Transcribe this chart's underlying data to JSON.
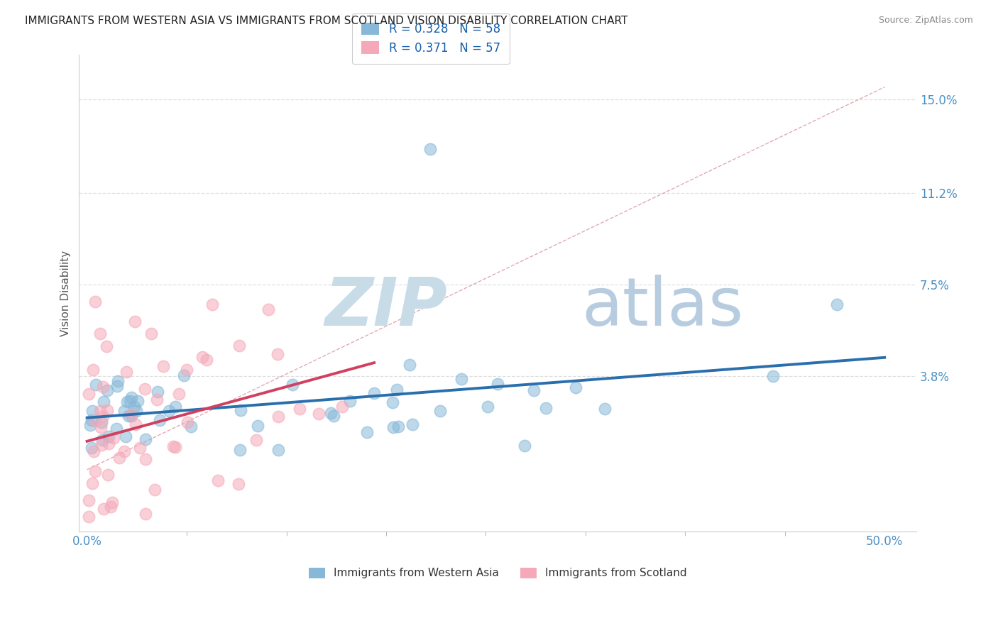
{
  "title": "IMMIGRANTS FROM WESTERN ASIA VS IMMIGRANTS FROM SCOTLAND VISION DISABILITY CORRELATION CHART",
  "source": "Source: ZipAtlas.com",
  "ylabel": "Vision Disability",
  "ytick_vals": [
    0.038,
    0.075,
    0.112,
    0.15
  ],
  "ytick_labels": [
    "3.8%",
    "7.5%",
    "11.2%",
    "15.0%"
  ],
  "xlim": [
    -0.005,
    0.52
  ],
  "ylim": [
    -0.025,
    0.168
  ],
  "legend1_r": "0.328",
  "legend1_n": "58",
  "legend2_r": "0.371",
  "legend2_n": "57",
  "color_blue": "#87b8d8",
  "color_pink": "#f5a8b8",
  "reg_blue": "#2a6fad",
  "reg_pink": "#d04060",
  "diag_color": "#e0a0a8",
  "grid_color": "#d8d8d8",
  "title_color": "#222222",
  "source_color": "#888888",
  "axis_color": "#4a90c4",
  "legend_text_color": "#1a5fa8",
  "watermark_zip_color": "#c8dce8",
  "watermark_atlas_color": "#b8cce0"
}
